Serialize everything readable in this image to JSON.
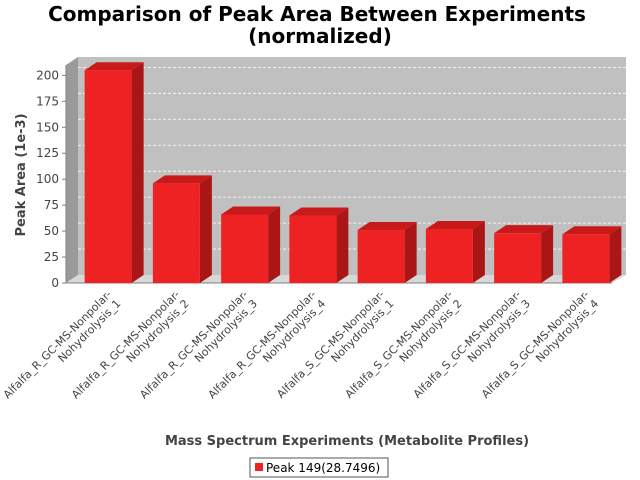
{
  "chart_data": {
    "type": "bar",
    "title_lines": [
      "Comparison of Peak Area Between Experiments",
      "(normalized)"
    ],
    "xlabel": "Mass Spectrum Experiments (Metabolite Profiles)",
    "ylabel": "Peak Area (1e-3)",
    "ylim": [
      0,
      210
    ],
    "yticks": [
      0,
      25,
      50,
      75,
      100,
      125,
      150,
      175,
      200
    ],
    "grid": true,
    "legend_position": "bottom",
    "categories": [
      [
        "Alfalfa_R_GC-MS-Nonpolar-",
        "Nohydrolysis_1"
      ],
      [
        "Alfalfa_R_GC-MS-Nonpolar-",
        "Nohydrolysis_2"
      ],
      [
        "Alfalfa_R_GC-MS-Nonpolar-",
        "Nohydrolysis_3"
      ],
      [
        "Alfalfa_R_GC-MS-Nonpolar-",
        "Nohydrolysis_4"
      ],
      [
        "Alfalfa_S_GC-MS-Nonpolar-",
        "Nohydrolysis_1"
      ],
      [
        "Alfalfa_S_GC-MS-Nonpolar-",
        "Nohydrolysis_2"
      ],
      [
        "Alfalfa_S_GC-MS-Nonpolar-",
        "Nohydrolysis_3"
      ],
      [
        "Alfalfa_S_GC-MS-Nonpolar-",
        "Nohydrolysis_4"
      ]
    ],
    "series": [
      {
        "name": "Peak 149(28.7496)",
        "color": "#ee2222",
        "values": [
          205,
          96,
          66,
          65,
          51,
          52,
          48,
          47
        ]
      }
    ],
    "colors": {
      "plot_back": "#c0c0c0",
      "plot_side": "#9a9a9a",
      "bar_front": "#ee2222",
      "bar_side": "#aa1515",
      "bar_top": "#c81a1a",
      "grid": "#ffffff"
    }
  }
}
